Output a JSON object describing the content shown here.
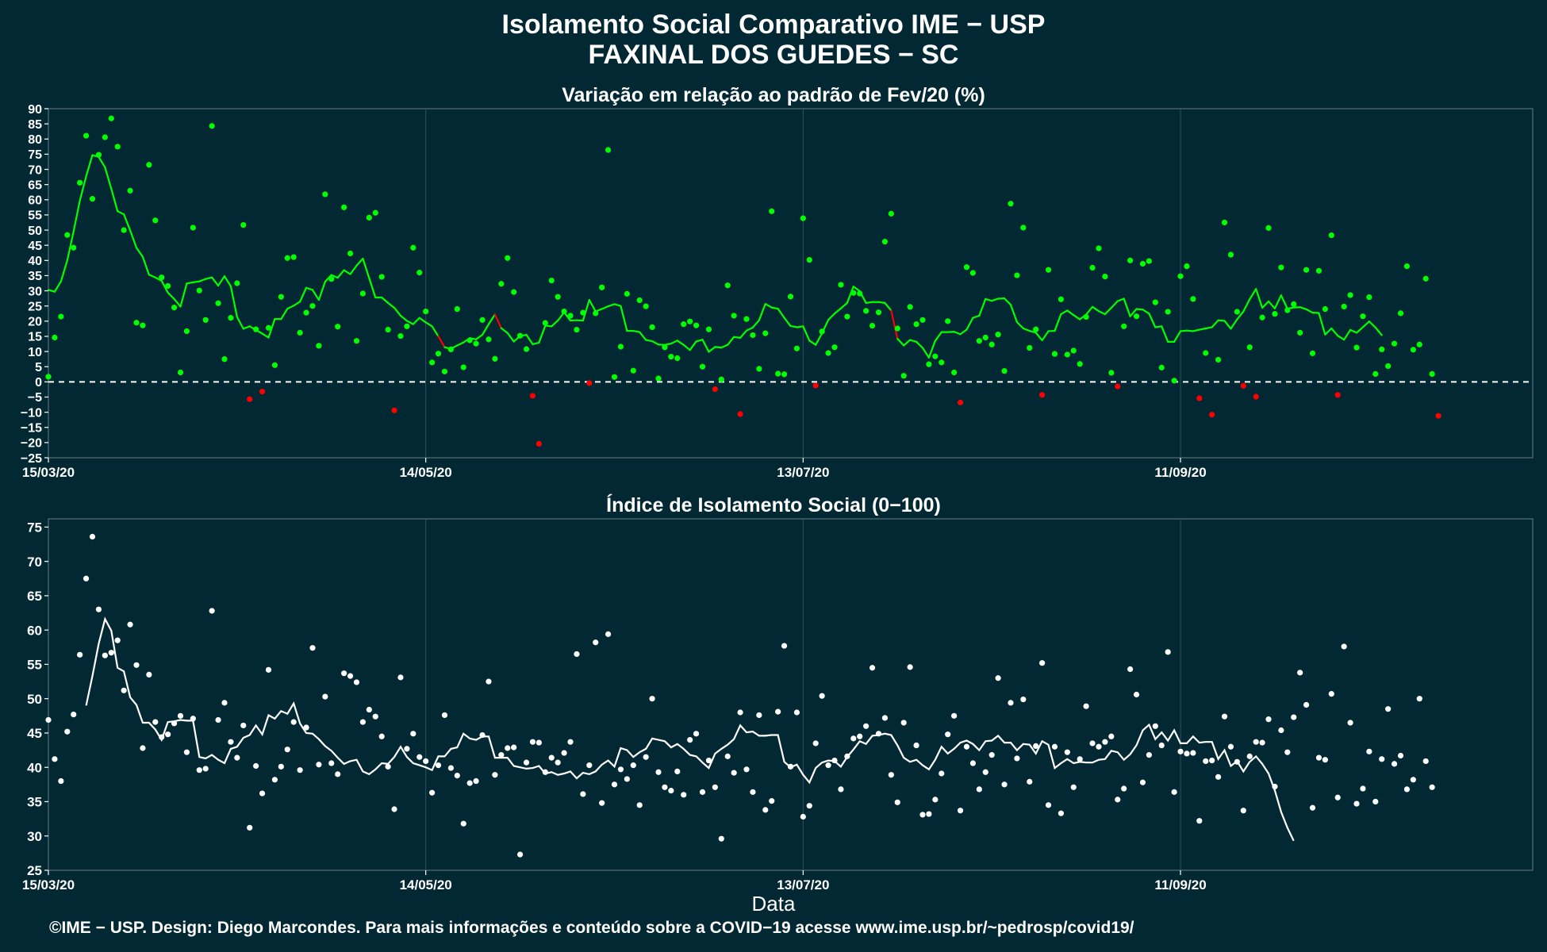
{
  "titles": {
    "main": "Isolamento Social Comparativo IME − USP",
    "place": "FAXINAL DOS GUEDES − SC"
  },
  "x_axis_label": "Data",
  "footer": "©IME − USP. Design: Diego Marcondes. Para mais informações e conteúdo sobre a COVID−19 acesse www.ime.usp.br/~pedrosp/covid19/",
  "colors": {
    "background": "#022833",
    "positive": "#00ff00",
    "negative": "#ff0000",
    "index": "#ffffff",
    "grid": "#34505a"
  },
  "chart_data": [
    {
      "type": "scatter",
      "title": "Variação em relação ao padrão de Fev/20 (%)",
      "x_range": [
        "2020-03-15",
        "2020-11-06"
      ],
      "x_ticks": [
        "15/03/20",
        "14/05/20",
        "13/07/20",
        "11/09/20"
      ],
      "y_ticks": [
        90,
        85,
        80,
        75,
        70,
        65,
        60,
        55,
        50,
        45,
        40,
        35,
        30,
        25,
        20,
        15,
        10,
        5,
        0,
        -5,
        -10,
        -15,
        -20,
        -25
      ],
      "ylim": [
        -25,
        90
      ],
      "reference_line": 0,
      "grid": true,
      "series": [
        {
          "kind": "daily",
          "values": [
            1.7,
            14.6,
            21.5,
            48.4,
            44.2,
            65.6,
            81.1,
            60.3,
            74.8,
            80.6,
            86.8,
            77.5,
            50.0,
            63.0,
            19.5,
            18.6,
            71.5,
            53.2,
            34.4,
            31.6,
            24.5,
            3.1,
            16.7,
            50.8,
            30.1,
            20.4,
            84.3,
            25.9,
            7.5,
            21.1,
            32.5,
            51.7,
            -5.7,
            17.3,
            -3.2,
            17.8,
            5.5,
            28.0,
            40.8,
            41.1,
            16.2,
            22.8,
            25.0,
            11.9,
            61.8,
            33.9,
            18.2,
            57.5,
            42.3,
            13.5,
            29.1,
            54.1,
            55.7,
            34.6,
            17.2,
            -9.4,
            15.1,
            18.3,
            44.2,
            36.0,
            23.2,
            6.4,
            9.3,
            3.4,
            10.7,
            24.0,
            4.8,
            13.7,
            12.6,
            20.4,
            14.0,
            7.6,
            32.3,
            40.8,
            29.6,
            15.2,
            10.8,
            -4.6,
            -20.4,
            19.4,
            33.4,
            28.0,
            23.2,
            21.8,
            17.2,
            22.8,
            -0.4,
            22.6,
            31.1,
            76.4,
            1.6,
            11.6,
            29.0,
            3.7,
            26.9,
            24.9,
            18.0,
            1.1,
            11.4,
            8.3,
            7.8,
            19.0,
            19.9,
            18.6,
            5.0,
            17.3,
            -2.4,
            0.8,
            31.8,
            21.8,
            -10.6,
            20.7,
            15.4,
            4.3,
            16.0,
            56.2,
            2.7,
            2.5,
            28.1,
            11.0,
            53.9,
            40.2,
            -1.2,
            16.6,
            9.5,
            11.4,
            32.0,
            21.5,
            29.3,
            29.1,
            23.4,
            18.5,
            22.9,
            46.2,
            55.4,
            17.6,
            2.0,
            24.7,
            19.0,
            20.4,
            5.8,
            8.4,
            6.4,
            20.0,
            3.1,
            -6.8,
            37.8,
            35.9,
            13.5,
            14.6,
            12.3,
            15.6,
            3.6,
            58.7,
            35.1,
            50.8,
            11.2,
            17.3,
            -4.3,
            36.9,
            9.2,
            27.2,
            9.0,
            10.3,
            5.9,
            21.4,
            37.6,
            44.0,
            34.7,
            3.0,
            -1.5,
            18.3,
            40.0,
            21.6,
            38.9,
            39.8,
            26.2,
            4.7,
            23.1,
            0.4,
            34.8,
            38.1,
            27.3,
            -5.4,
            9.5,
            -10.8,
            7.3,
            52.5,
            41.9,
            23.1,
            -1.3,
            11.4,
            -4.9,
            21.2,
            50.7,
            22.4,
            37.7,
            23.6,
            25.6,
            16.2,
            36.9,
            9.4,
            36.6,
            24.0,
            48.3,
            -4.3,
            24.8,
            28.6,
            11.3,
            21.6,
            27.9,
            2.6,
            10.7,
            5.2,
            12.6,
            22.6,
            38.1,
            10.6,
            12.3,
            34.0,
            2.6,
            -11.2
          ]
        },
        {
          "kind": "7-day moving average",
          "start": "2020-03-15",
          "values": [
            30.3,
            29.7,
            33.1,
            40.0,
            49.5,
            59.7,
            67.7,
            74.7,
            74.1,
            70.7,
            63.6,
            56.2,
            55.2,
            49.9,
            44.2,
            41.2,
            35.3,
            34.4,
            33.3,
            29.4,
            27.3,
            24.8,
            32.4,
            32.8,
            33.1,
            33.9,
            34.4,
            31.7,
            34.8,
            31.5,
            21.4,
            17.5,
            18.3,
            17.1,
            15.9,
            14.6,
            20.7,
            20.7,
            24.1,
            25.1,
            26.4,
            31.0,
            30.3,
            27.0,
            33.0,
            35.2,
            34.3,
            36.8,
            35.5,
            38.3,
            40.6,
            34.2,
            27.8,
            27.8,
            26.0,
            24.4,
            21.8,
            20.1,
            19.0,
            21.1,
            19.6,
            18.3,
            15.0,
            11.4,
            10.9,
            12.0,
            13.0,
            14.4,
            14.0,
            15.5,
            19.0,
            22.2,
            17.7,
            16.1,
            13.3,
            15.1,
            15.5,
            12.4,
            12.9,
            18.5,
            18.3,
            20.2,
            22.9,
            20.2,
            20.3,
            20.2,
            27.0,
            23.2,
            24.0,
            24.9,
            25.6,
            25.0,
            16.8,
            16.8,
            16.4,
            13.8,
            13.4,
            12.3,
            12.2,
            12.6,
            13.6,
            12.2,
            10.5,
            13.3,
            13.9,
            9.9,
            11.5,
            11.3,
            12.2,
            14.8,
            14.5,
            16.9,
            17.9,
            20.3,
            25.7,
            24.5,
            24.1,
            21.1,
            18.4,
            18.0,
            18.3,
            13.6,
            12.2,
            16.0,
            20.4,
            22.5,
            24.2,
            26.0,
            31.4,
            29.9,
            26.0,
            26.3,
            26.3,
            26.0,
            23.5,
            14.2,
            12.0,
            13.8,
            13.2,
            11.2,
            8.0,
            13.5,
            16.4,
            16.4,
            16.5,
            15.7,
            17.2,
            21.1,
            21.8,
            27.3,
            26.7,
            27.4,
            27.5,
            25.4,
            19.7,
            17.6,
            16.8,
            16.2,
            13.7,
            16.7,
            16.8,
            22.3,
            23.5,
            22.0,
            20.6,
            22.2,
            24.7,
            23.3,
            22.3,
            24.4,
            26.6,
            27.4,
            21.6,
            24.0,
            23.8,
            22.5,
            18.0,
            18.3,
            13.2,
            13.2,
            16.7,
            16.9,
            16.7,
            17.2,
            17.6,
            18.0,
            20.3,
            20.1,
            17.5,
            20.6,
            23.2,
            27.2,
            30.6,
            24.4,
            26.5,
            24.2,
            28.5,
            24.1,
            24.5,
            24.6,
            23.9,
            22.8,
            22.7,
            15.6,
            17.6,
            15.2,
            13.9,
            17.1,
            16.2,
            18.0,
            19.9,
            17.9,
            15.4
          ]
        }
      ]
    },
    {
      "type": "scatter",
      "title": "Índice de Isolamento Social (0−100)",
      "x_range": [
        "2020-03-15",
        "2020-11-06"
      ],
      "x_ticks": [
        "15/03/20",
        "14/05/20",
        "13/07/20",
        "11/09/20"
      ],
      "y_ticks": [
        75,
        70,
        65,
        60,
        55,
        50,
        45,
        40,
        35,
        30,
        25
      ],
      "ylim": [
        25,
        76.2
      ],
      "grid": true,
      "series": [
        {
          "kind": "daily",
          "values": [
            46.9,
            41.2,
            38.0,
            45.2,
            47.7,
            56.4,
            67.5,
            73.6,
            63.0,
            56.3,
            56.7,
            58.5,
            51.2,
            60.8,
            54.9,
            42.8,
            53.5,
            46.6,
            44.4,
            44.8,
            46.4,
            47.5,
            42.2,
            47.1,
            39.6,
            39.8,
            62.8,
            46.9,
            49.4,
            43.7,
            41.4,
            46.1,
            31.2,
            40.2,
            36.2,
            54.2,
            38.2,
            40.1,
            42.6,
            46.6,
            39.6,
            45.8,
            57.4,
            40.4,
            50.3,
            40.6,
            39.0,
            53.7,
            53.3,
            52.4,
            46.6,
            48.4,
            47.4,
            44.5,
            40.1,
            33.9,
            53.1,
            42.7,
            44.9,
            41.5,
            40.9,
            36.3,
            40.3,
            47.6,
            39.9,
            38.8,
            31.8,
            37.7,
            38.0,
            44.7,
            52.5,
            38.9,
            41.8,
            42.8,
            42.9,
            27.3,
            40.7,
            43.7,
            43.6,
            39.3,
            41.4,
            40.7,
            42.1,
            43.7,
            56.5,
            36.1,
            40.3,
            58.2,
            34.8,
            59.4,
            37.5,
            39.7,
            38.3,
            40.3,
            34.5,
            41.5,
            50.0,
            39.3,
            37.1,
            36.6,
            39.4,
            36.0,
            44.0,
            44.9,
            36.4,
            41.0,
            37.1,
            29.6,
            41.6,
            39.2,
            48.0,
            39.7,
            36.4,
            47.6,
            33.8,
            35.1,
            48.1,
            57.7,
            40.1,
            48.0,
            32.8,
            34.4,
            43.5,
            50.4,
            40.3,
            41.0,
            36.8,
            41.6,
            44.2,
            44.5,
            46.0,
            54.5,
            44.9,
            47.2,
            38.9,
            34.9,
            46.5,
            54.6,
            43.2,
            33.1,
            33.2,
            35.3,
            39.1,
            44.8,
            47.5,
            33.7,
            43.0,
            40.6,
            36.8,
            39.3,
            41.8,
            53.0,
            37.5,
            49.4,
            41.3,
            49.9,
            37.9,
            43.1,
            55.2,
            34.5,
            43.0,
            33.3,
            42.2,
            37.1,
            41.2,
            48.9,
            43.5,
            43.0,
            43.7,
            44.5,
            35.3,
            36.9,
            54.3,
            50.6,
            37.8,
            41.8,
            46.0,
            43.2,
            56.8,
            36.4,
            42.3,
            42.0,
            42.1,
            32.2,
            40.9,
            41.0,
            38.6,
            47.4,
            43.0,
            40.8,
            33.7,
            41.6,
            43.7,
            43.6,
            47.0,
            37.2,
            45.4,
            42.2,
            47.3,
            53.8,
            49.1,
            34.1,
            41.4,
            41.1,
            50.7,
            35.6,
            57.6,
            46.5,
            34.7,
            36.9,
            42.3,
            35.0,
            41.2,
            48.5,
            40.5,
            41.7,
            36.8,
            38.2,
            50.0,
            40.9,
            37.1
          ]
        },
        {
          "kind": "7-day moving average",
          "start": "2020-03-21",
          "values": [
            49.0,
            53.3,
            58.0,
            61.6,
            59.9,
            54.5,
            54.0,
            50.2,
            49.1,
            46.5,
            46.5,
            45.5,
            44.0,
            46.6,
            46.7,
            46.9,
            46.8,
            46.8,
            41.5,
            41.3,
            41.8,
            41.1,
            40.6,
            42.7,
            43.0,
            44.3,
            44.7,
            46.1,
            44.8,
            47.6,
            47.1,
            48.2,
            47.8,
            49.3,
            46.4,
            45.0,
            44.9,
            44.1,
            43.1,
            42.4,
            41.4,
            40.5,
            40.9,
            41.1,
            39.4,
            39.0,
            39.7,
            40.6,
            40.5,
            41.5,
            43.0,
            41.5,
            40.6,
            40.3,
            40.0,
            39.6,
            41.6,
            41.6,
            42.7,
            42.9,
            44.9,
            44.2,
            44.0,
            44.5,
            44.5,
            41.4,
            41.4,
            41.4,
            40.2,
            40.0,
            39.8,
            39.9,
            40.2,
            39.1,
            39.3,
            38.9,
            39.1,
            39.4,
            38.4,
            39.2,
            39.0,
            39.4,
            40.4,
            41.0,
            40.1,
            42.8,
            42.5,
            41.5,
            42.2,
            42.7,
            44.2,
            44.0,
            43.8,
            42.9,
            43.4,
            42.7,
            41.8,
            41.6,
            40.7,
            39.9,
            42.0,
            42.7,
            43.3,
            44.1,
            46.1,
            45.1,
            45.2,
            44.6,
            44.6,
            44.7,
            44.7,
            40.8,
            40.0,
            40.4,
            38.9,
            37.8,
            39.9,
            40.7,
            41.0,
            40.9,
            40.1,
            41.5,
            42.6,
            43.8,
            43.4,
            44.6,
            44.7,
            44.9,
            44.7,
            43.2,
            41.4,
            40.8,
            41.1,
            40.3,
            39.7,
            41.1,
            43.0,
            42.0,
            42.7,
            43.6,
            43.9,
            43.4,
            42.5,
            43.8,
            43.9,
            44.6,
            43.6,
            43.6,
            42.5,
            43.4,
            43.3,
            42.0,
            43.8,
            43.3,
            39.9,
            40.6,
            41.2,
            40.6,
            40.8,
            40.7,
            40.7,
            41.1,
            41.2,
            42.4,
            42.2,
            41.1,
            41.9,
            43.2,
            45.4,
            46.2,
            44.1,
            45.1,
            43.9,
            45.4,
            43.5,
            43.5,
            44.5,
            43.6,
            43.7,
            43.7,
            41.2,
            42.5,
            40.2,
            40.9,
            39.4,
            40.8,
            41.6,
            40.5,
            39.1,
            36.6,
            33.5,
            31.2,
            29.3
          ]
        }
      ]
    }
  ]
}
